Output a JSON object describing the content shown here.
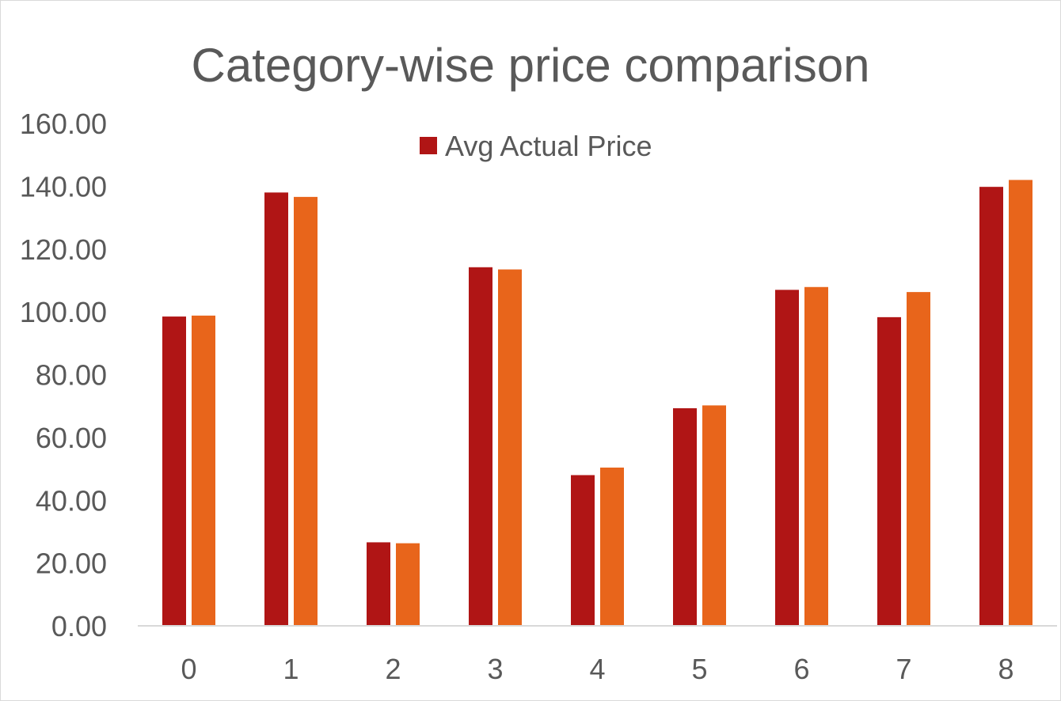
{
  "chart_data": {
    "type": "bar",
    "title": "Category-wise price comparison",
    "xlabel": "",
    "ylabel": "",
    "categories": [
      "0",
      "1",
      "2",
      "3",
      "4",
      "5",
      "6",
      "7",
      "8"
    ],
    "series": [
      {
        "name": "Avg Actual Price",
        "color": "#b01515",
        "values": [
          98.5,
          138.0,
          26.6,
          114.2,
          48.0,
          69.3,
          107.0,
          98.3,
          139.8
        ],
        "in_legend": true
      },
      {
        "color": "#e8651b",
        "values": [
          98.8,
          136.6,
          26.3,
          113.5,
          50.4,
          70.2,
          107.9,
          106.3,
          142.0
        ],
        "in_legend": false
      }
    ],
    "ylim": [
      0,
      160
    ],
    "ytick_step": 20,
    "ytick_labels": [
      "0.00",
      "20.00",
      "40.00",
      "60.00",
      "80.00",
      "100.00",
      "120.00",
      "140.00",
      "160.00"
    ],
    "grid": false,
    "legend_position": "top"
  }
}
